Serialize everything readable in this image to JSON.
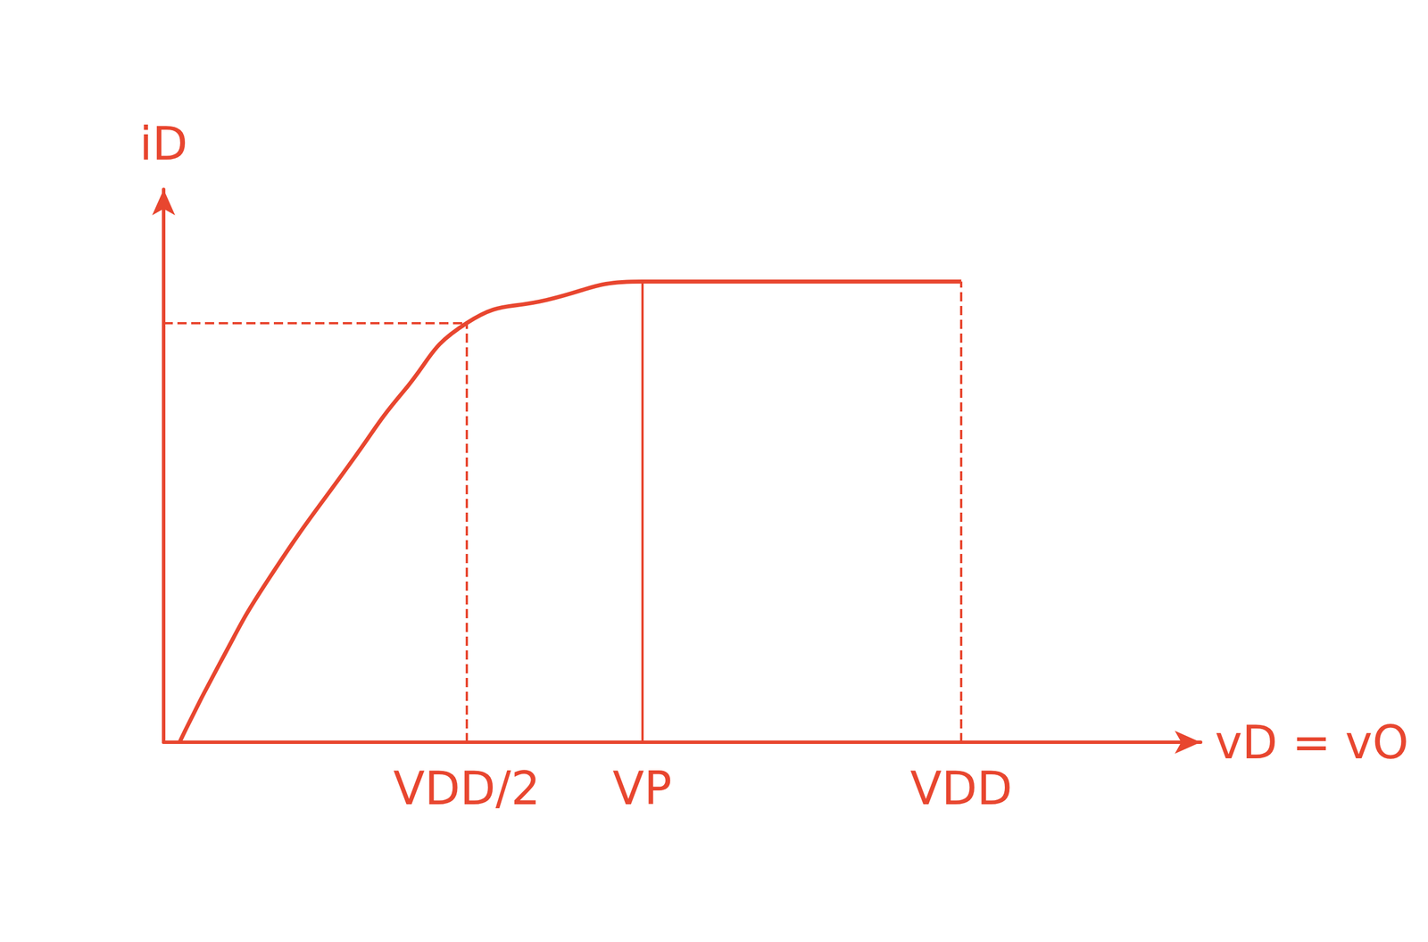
{
  "chart_data": {
    "type": "line",
    "x_label": "vD = vO",
    "y_label": "iD",
    "x": [
      0.2,
      0.7,
      1.3,
      2.4,
      3.0,
      3.8,
      4.8,
      6.0,
      10.0
    ],
    "values": [
      0,
      1.7,
      3.5,
      6.2,
      7.6,
      9.1,
      9.6,
      10,
      10
    ],
    "color": "#e8462f",
    "xlim": [
      0,
      13
    ],
    "ylim": [
      0,
      12
    ],
    "xticks": [
      {
        "value": 3.8,
        "label": "VDD/2"
      },
      {
        "value": 6.0,
        "label": "VP"
      },
      {
        "value": 10.0,
        "label": "VDD"
      }
    ],
    "yticks": [],
    "tick_labels": "x",
    "grid": false
  }
}
